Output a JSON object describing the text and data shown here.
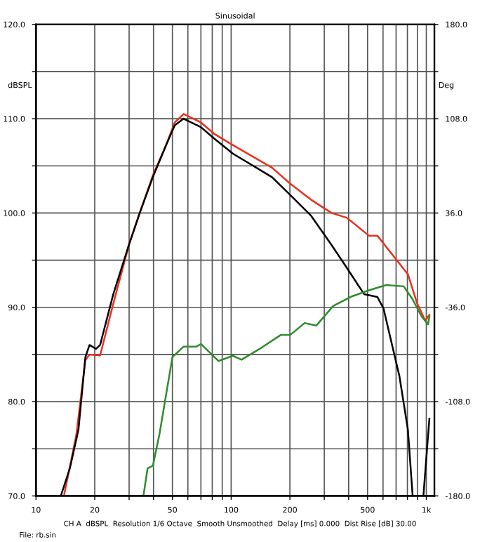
{
  "chart_data": {
    "type": "line",
    "title": "Sinusoidal",
    "ylabel": "dBSPL",
    "y2label": "Deg",
    "annotations": [
      "CH A  dBSPL  Resolution 1/6 Octave  Smooth Unsmoothed  Delay [ms] 0.000  Dist Rise [dB] 30.00",
      "File: rb.sin"
    ],
    "log": "x",
    "grid": true,
    "line_style": "solid",
    "marker": "none",
    "xlim": [
      10,
      1100
    ],
    "ylim": [
      70,
      120
    ],
    "y2lim": [
      -180,
      180
    ],
    "xticks": [
      10,
      20,
      {
        "value": 30,
        "label": null
      },
      {
        "value": 40,
        "label": null
      },
      50,
      {
        "value": 60,
        "label": null
      },
      {
        "value": 70,
        "label": null
      },
      {
        "value": 80,
        "label": null
      },
      {
        "value": 90,
        "label": null
      },
      100,
      200,
      {
        "value": 300,
        "label": null
      },
      {
        "value": 400,
        "label": null
      },
      500,
      {
        "value": 600,
        "label": null
      },
      {
        "value": 700,
        "label": null
      },
      {
        "value": 800,
        "label": null
      },
      {
        "value": 900,
        "label": null
      },
      {
        "value": 1000,
        "label": "1k"
      }
    ],
    "yticks": [
      {
        "value": 70,
        "label": "70.0"
      },
      {
        "value": 75,
        "label": null
      },
      {
        "value": 80,
        "label": "80.0"
      },
      {
        "value": 85,
        "label": null
      },
      {
        "value": 90,
        "label": "90.0"
      },
      {
        "value": 95,
        "label": null
      },
      {
        "value": 100,
        "label": "100.0"
      },
      {
        "value": 105,
        "label": null
      },
      {
        "value": 110,
        "label": "110.0"
      },
      {
        "value": 115,
        "label": null
      },
      {
        "value": 120,
        "label": "120.0"
      }
    ],
    "y2ticks": [
      {
        "value": -180,
        "label": "-180.0"
      },
      {
        "value": -144,
        "label": null
      },
      {
        "value": -108,
        "label": "-108.0"
      },
      {
        "value": -72,
        "label": null
      },
      {
        "value": -36,
        "label": "-36.0"
      },
      {
        "value": 0,
        "label": null
      },
      {
        "value": 36,
        "label": "36.0"
      },
      {
        "value": 72,
        "label": null
      },
      {
        "value": 108,
        "label": "108.0"
      },
      {
        "value": 144,
        "label": null
      },
      {
        "value": 180,
        "label": "180.0"
      }
    ],
    "series": [
      {
        "color": "#e8321e",
        "x": [
          13.9,
          16.1,
          17.9,
          18.8,
          21.3,
          24.9,
          29.9,
          34.0,
          39.7,
          46.4,
          51.4,
          57.1,
          70.0,
          81.8,
          102,
          162,
          201,
          257,
          327,
          391,
          508,
          561,
          705,
          805,
          898,
          986,
          1037
        ],
        "values": [
          70,
          76.5,
          84.4,
          85.0,
          84.9,
          90.4,
          96.6,
          100.0,
          104.0,
          107.2,
          109.6,
          110.5,
          109.6,
          108.4,
          107.2,
          104.8,
          103.1,
          101.4,
          100.0,
          99.5,
          97.6,
          97.6,
          95.0,
          93.5,
          90.4,
          88.6,
          89.2
        ]
      },
      {
        "color": "#000000",
        "x": [
          13.4,
          14.9,
          16.5,
          17.9,
          18.8,
          20.3,
          21.3,
          24.9,
          29.9,
          34.0,
          39.7,
          46.4,
          51.4,
          57.1,
          70.0,
          81.8,
          102,
          162,
          201,
          257,
          327,
          391,
          480,
          561,
          603,
          728,
          805,
          851,
          900,
          966,
          1037
        ],
        "values": [
          70,
          72.9,
          77.0,
          84.7,
          86.0,
          85.6,
          86.0,
          91.4,
          96.6,
          100.0,
          103.8,
          107.2,
          109.3,
          110.0,
          109.1,
          107.9,
          106.3,
          103.8,
          101.9,
          99.7,
          96.6,
          94.2,
          91.4,
          91.1,
          89.9,
          82.7,
          77.0,
          70,
          null,
          70,
          78.2
        ]
      },
      {
        "color": "#2e8b2e",
        "axis": "y2",
        "x": [
          35.5,
          37.3,
          39.7,
          42.9,
          50.0,
          57.1,
          66.4,
          70.0,
          86.1,
          102,
          113,
          139,
          180,
          201,
          238,
          273,
          333,
          410,
          508,
          622,
          766,
          851,
          946,
          1021,
          1037
        ],
        "values": [
          -180,
          -159,
          -157,
          -133,
          -74,
          -66,
          -66,
          -64,
          -77,
          -73,
          -76,
          -68,
          -57,
          -57,
          -48,
          -50,
          -35,
          -28,
          -23,
          -19,
          -20,
          -30,
          -43,
          -49,
          -43
        ]
      }
    ]
  }
}
